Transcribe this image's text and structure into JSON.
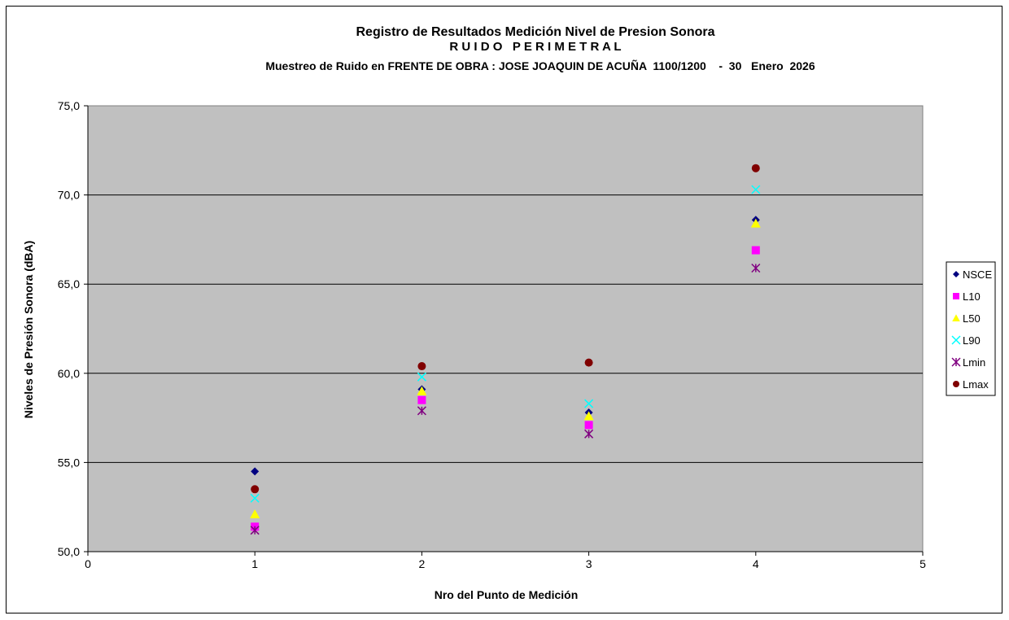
{
  "chart_data": {
    "type": "scatter",
    "title": "Registro de Resultados Medición Nivel de Presion Sonora",
    "subtitle": "R U I D O   P E R I M E T R A L",
    "subtitle2": "Muestreo de Ruido en FRENTE DE OBRA : JOSE JOAQUIN DE ACUÑA  1100/1200    -  30   Enero  2026",
    "xlabel": "Nro del Punto de Medición",
    "ylabel": "Niveles de Presión Sonora (dBA)",
    "xlim": [
      0,
      5
    ],
    "ylim": [
      50,
      75
    ],
    "x_ticks": [
      0,
      1,
      2,
      3,
      4,
      5
    ],
    "x_tick_labels": [
      "0",
      "1",
      "2",
      "3",
      "4",
      "5"
    ],
    "y_ticks": [
      50,
      55,
      60,
      65,
      70,
      75
    ],
    "y_tick_labels": [
      "50,0",
      "55,0",
      "60,0",
      "65,0",
      "70,0",
      "75,0"
    ],
    "grid": "horizontal",
    "plot_background": "#c0c0c0",
    "legend_position": "right",
    "series": [
      {
        "name": "NSCE",
        "marker": "diamond",
        "color": "#000080",
        "x": [
          1,
          2,
          3,
          4
        ],
        "y": [
          54.5,
          59.1,
          57.8,
          68.6
        ]
      },
      {
        "name": "L10",
        "marker": "square",
        "color": "#ff00ff",
        "x": [
          1,
          2,
          3,
          4
        ],
        "y": [
          51.4,
          58.5,
          57.1,
          66.9
        ]
      },
      {
        "name": "L50",
        "marker": "triangle",
        "color": "#ffff00",
        "x": [
          1,
          2,
          3,
          4
        ],
        "y": [
          52.1,
          59.0,
          57.6,
          68.4
        ]
      },
      {
        "name": "L90",
        "marker": "x",
        "color": "#00ffff",
        "x": [
          1,
          2,
          3,
          4
        ],
        "y": [
          53.0,
          59.8,
          58.3,
          70.3
        ]
      },
      {
        "name": "Lmin",
        "marker": "star",
        "color": "#800080",
        "x": [
          1,
          2,
          3,
          4
        ],
        "y": [
          51.2,
          57.9,
          56.6,
          65.9
        ]
      },
      {
        "name": "Lmax",
        "marker": "circle",
        "color": "#800000",
        "x": [
          1,
          2,
          3,
          4
        ],
        "y": [
          53.5,
          60.4,
          60.6,
          71.5
        ]
      }
    ]
  }
}
